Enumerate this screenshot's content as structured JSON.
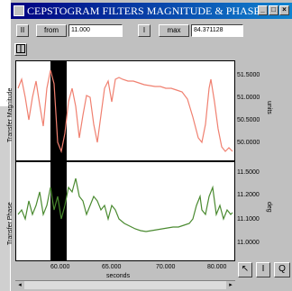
{
  "window": {
    "title": "CEPSTOGRAM FILTERS MAGNITUDE & PHASE",
    "min_glyph": "_",
    "max_glyph": "□",
    "close_glyph": "×"
  },
  "toolbar": {
    "btn1": "II",
    "from_label": "from",
    "from_value": "11.000",
    "btn2": "I",
    "to_label": "max",
    "to_value": "84.371128"
  },
  "plots": {
    "magnitude": {
      "ylabel": "Transfer Magnitude",
      "unit": "units",
      "ticks": [
        "51.5000",
        "51.0000",
        "50.5000",
        "50.0000"
      ]
    },
    "phase": {
      "ylabel": "Transfer Phase",
      "unit": "deg",
      "ticks": [
        "11.5000",
        "11.2000",
        "11.1000",
        "11.0000"
      ]
    },
    "xticks": [
      "60.000",
      "65.000",
      "70.000",
      "80.000"
    ],
    "xlabel": "seconds",
    "colors": {
      "magnitude": "#f08070",
      "phase": "#4a8a30",
      "marker": "#000000"
    }
  },
  "bottom": {
    "pointer_glyph": "↖",
    "cursor_glyph": "I",
    "zoom_glyph": "Q",
    "scroll_left": "◂",
    "scroll_right": "▸"
  }
}
